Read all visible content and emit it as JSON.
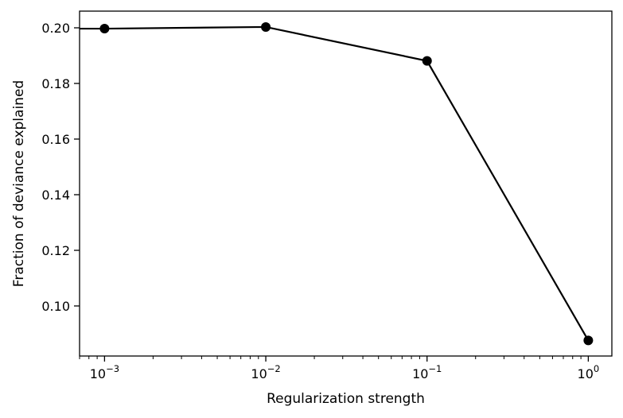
{
  "chart_data": {
    "type": "line",
    "title": "",
    "xlabel": "Regularization strength",
    "ylabel": "Fraction of deviance explained",
    "xscale": "log",
    "x": [
      0.001,
      0.01,
      0.1,
      1
    ],
    "xlim": [
      0.0007,
      1.4
    ],
    "ylim": [
      0.082,
      0.206
    ],
    "series": [
      {
        "values": [
          0.1997,
          0.2003,
          0.1881,
          0.0876
        ],
        "color": "#000000",
        "marker": "circle"
      }
    ],
    "x_ticks": [
      {
        "value": 0.001,
        "base": "10",
        "exp": "−3"
      },
      {
        "value": 0.01,
        "base": "10",
        "exp": "−2"
      },
      {
        "value": 0.1,
        "base": "10",
        "exp": "−1"
      },
      {
        "value": 1,
        "base": "10",
        "exp": "0"
      }
    ],
    "y_ticks": [
      {
        "value": 0.1,
        "label": "0.10"
      },
      {
        "value": 0.12,
        "label": "0.12"
      },
      {
        "value": 0.14,
        "label": "0.14"
      },
      {
        "value": 0.16,
        "label": "0.16"
      },
      {
        "value": 0.18,
        "label": "0.18"
      },
      {
        "value": 0.2,
        "label": "0.20"
      }
    ],
    "grid": false,
    "legend": "none"
  }
}
